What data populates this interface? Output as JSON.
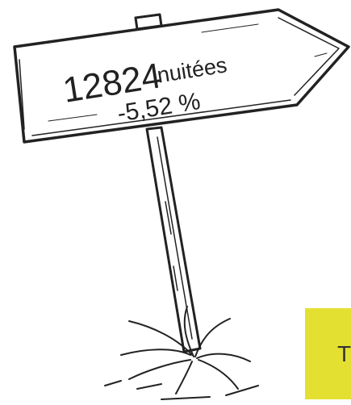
{
  "sign": {
    "value": "12824",
    "unit": "nuitées",
    "change": "-5,52 %"
  },
  "box": {
    "text": "T"
  }
}
